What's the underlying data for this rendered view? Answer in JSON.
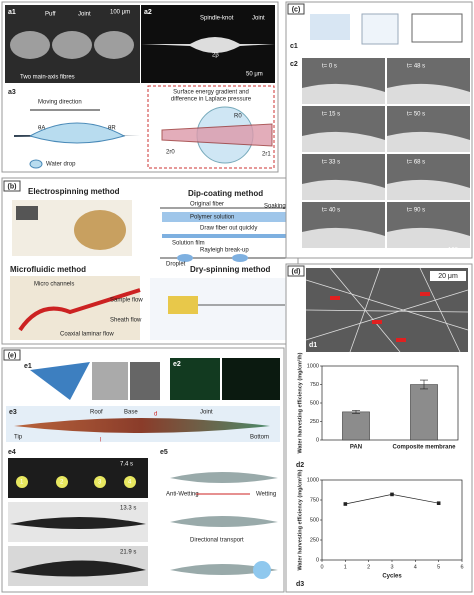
{
  "panels": {
    "a": {
      "label": "(a)",
      "a1": "a1",
      "a2": "a2",
      "a3": "a3",
      "puff": "Puff",
      "joint1": "Joint",
      "scale1": "100 μm",
      "fibres": "Two main-axis fibres",
      "spindle": "Spindle-knot",
      "joint2": "Joint",
      "beta": "2β",
      "scale2": "50 μm",
      "moving": "Moving direction",
      "gradient": [
        "Surface energy gradient and",
        "difference in Laplace pressure"
      ],
      "r0": "R0",
      "r2": "2r0",
      "r1": "2r1",
      "thetaA": "θA",
      "thetaR": "θR",
      "drop": "Water drop"
    },
    "b": {
      "label": "(b)",
      "electro": "Electrospinning method",
      "dip": "Dip-coating method",
      "micro": "Microfluidic method",
      "dry": "Dry-spinning method",
      "original": "Original fiber",
      "polymer": "Polymer solution",
      "soaking": "Soaking",
      "draw": "Draw fiber out quickly",
      "film": "Solution film",
      "rayleigh": "Rayleigh break-up",
      "droplet": "Droplet",
      "channels": "Micro channels",
      "sample": "Sample flow",
      "sheath": "Sheath flow",
      "coaxial": "Coaxial laminar flow"
    },
    "c": {
      "label": "(c)",
      "c1": "c1",
      "c2": "c2",
      "times": [
        "t= 0 s",
        "t= 48 s",
        "t= 15 s",
        "t= 50 s",
        "t= 33 s",
        "t= 68 s",
        "t= 40 s",
        "t= 90 s"
      ],
      "scale": "100 μm"
    },
    "d": {
      "label": "(d)",
      "d1": "d1",
      "d2": "d2",
      "d3": "d3",
      "scale": "20 μm"
    },
    "e": {
      "label": "(e)",
      "e1": "e1",
      "e2": "e2",
      "e3": "e3",
      "e4": "e4",
      "e5": "e5",
      "roof": "Roof",
      "base": "Base",
      "joint": "Joint",
      "tip": "Tip",
      "bottom": "Bottom",
      "l": "l",
      "d": "d",
      "t1": "7.4 s",
      "t2": "13.3 s",
      "t3": "21.9 s",
      "anti": "Anti-Wetting",
      "wetting": "Wetting",
      "directional": "Directional transport",
      "n1": "1",
      "n2": "2",
      "n3": "3",
      "n4": "4"
    }
  },
  "chart_data": [
    {
      "type": "bar",
      "ylabel": "Water harvesting efficiency (mg/cm²/h)",
      "categories": [
        "PAN",
        "Composite membrane"
      ],
      "values": [
        380,
        750
      ],
      "errors": [
        20,
        60
      ],
      "color": "#8c8c8c",
      "ylim": [
        0,
        1000
      ],
      "yticks": [
        0,
        250,
        500,
        750,
        1000
      ]
    },
    {
      "type": "line",
      "ylabel": "Water harvesting efficiency (mg/cm²/h)",
      "xlabel": "Cycles",
      "x": [
        1,
        3,
        5
      ],
      "values": [
        700,
        820,
        710
      ],
      "color": "#222222",
      "xlim": [
        0,
        6
      ],
      "xticks": [
        0,
        1,
        2,
        3,
        4,
        5,
        6
      ],
      "ylim": [
        0,
        1000
      ],
      "yticks": [
        0,
        250,
        500,
        750,
        1000
      ]
    }
  ]
}
